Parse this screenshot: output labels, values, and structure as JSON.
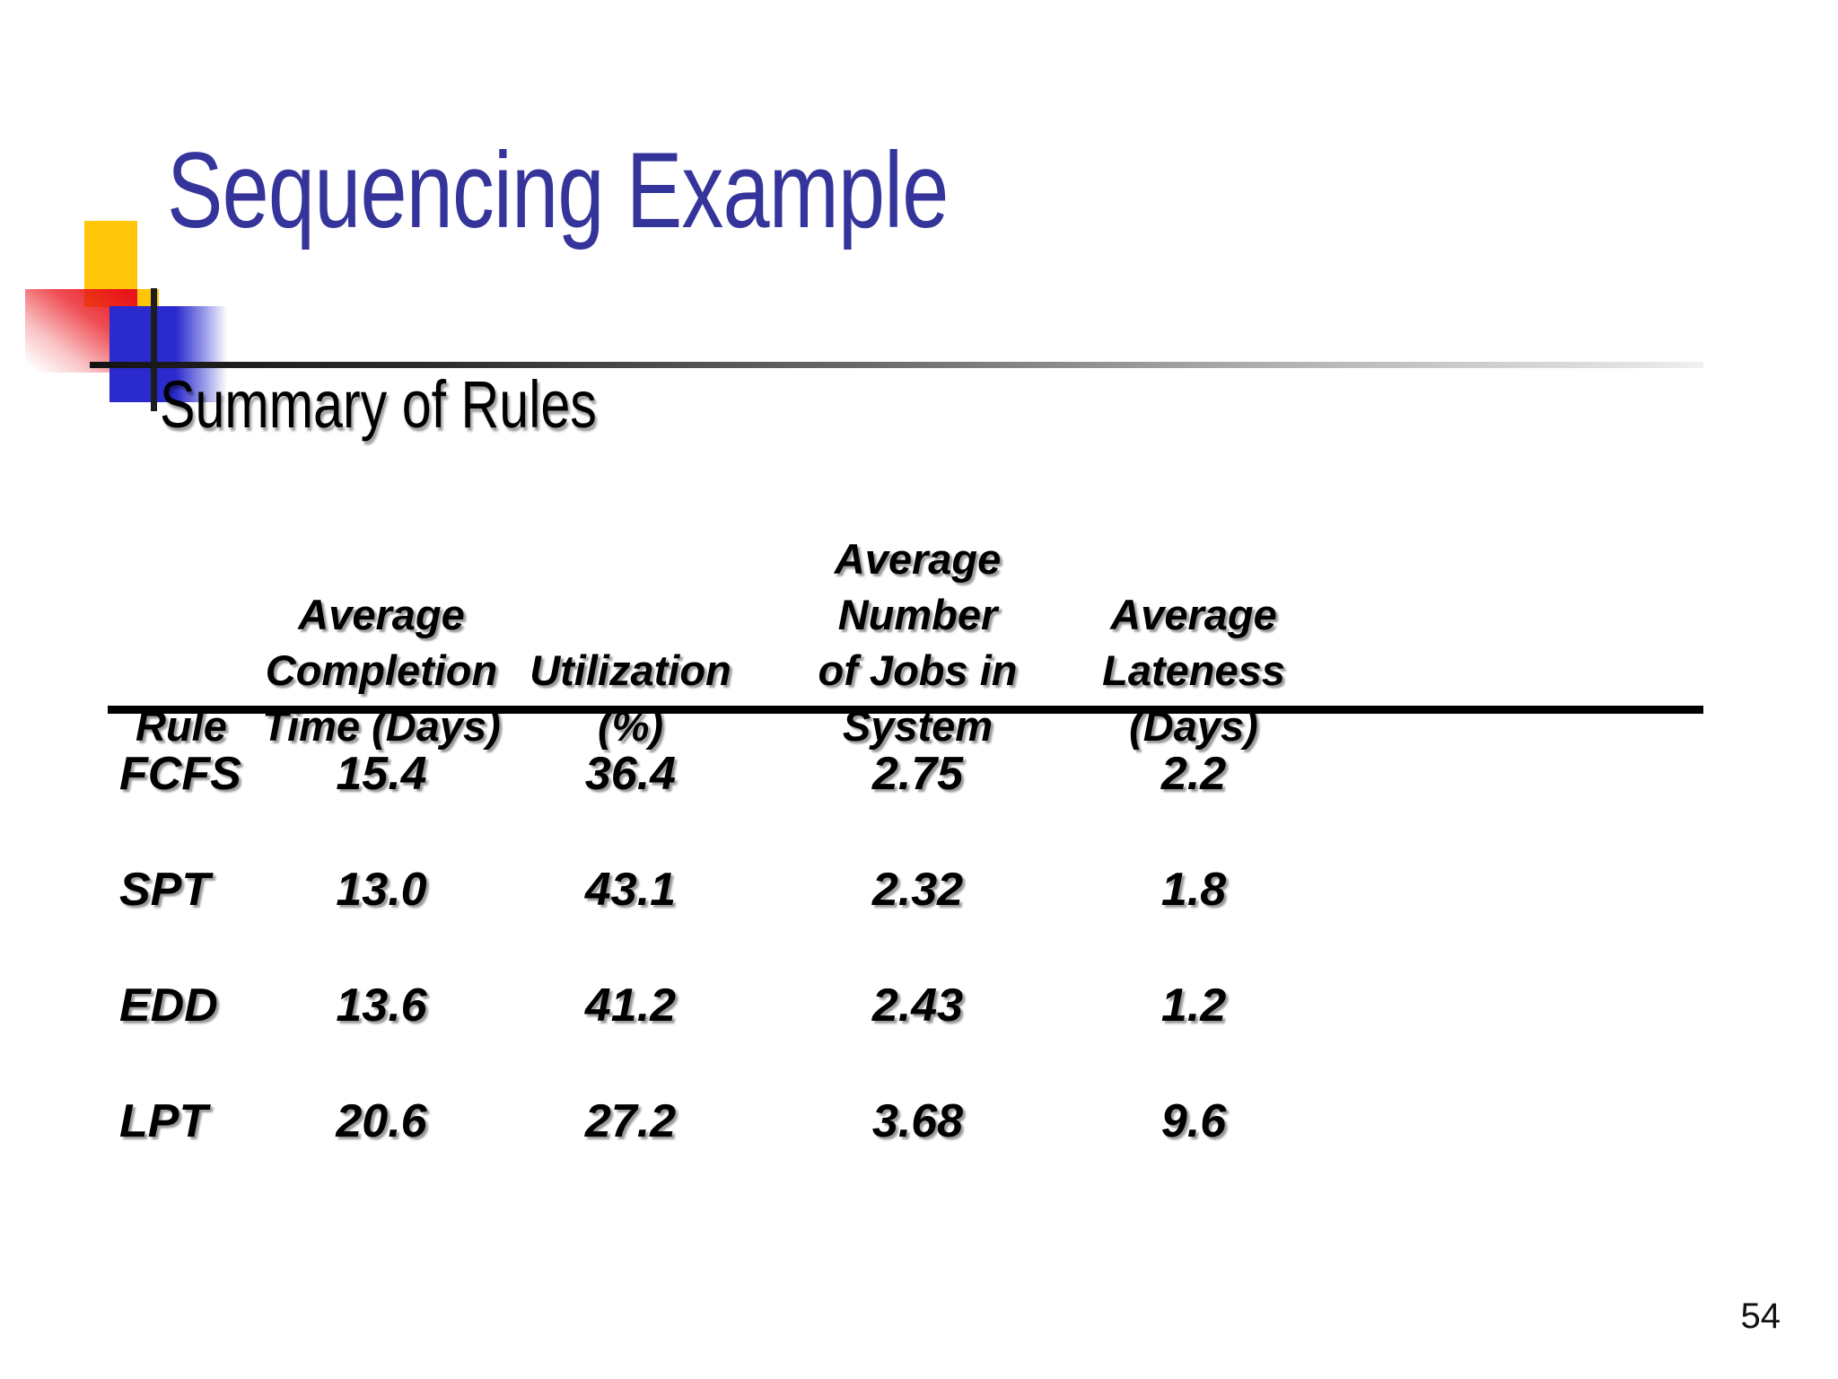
{
  "slide": {
    "title": "Sequencing Example",
    "subtitle": "Summary of Rules",
    "page_number": "54"
  },
  "colors": {
    "title_blue": "#35349B",
    "accent_yellow": "#FFC609",
    "accent_red": "#E9131B",
    "accent_blue": "#2A2ACE"
  },
  "table": {
    "columns": [
      {
        "id": "rule",
        "label_lines": [
          "Rule"
        ]
      },
      {
        "id": "avg_completion_time_days",
        "label_lines": [
          "Average",
          "Completion",
          "Time (Days)"
        ]
      },
      {
        "id": "utilization_pct",
        "label_lines": [
          "Utilization",
          "(%)"
        ]
      },
      {
        "id": "avg_jobs_in_system",
        "label_lines": [
          "Average Number",
          "of Jobs in",
          "System"
        ]
      },
      {
        "id": "avg_lateness_days",
        "label_lines": [
          "Average",
          "Lateness",
          "(Days)"
        ]
      }
    ],
    "rows": [
      {
        "rule": "FCFS",
        "avg_completion_time_days": "15.4",
        "utilization_pct": "36.4",
        "avg_jobs_in_system": "2.75",
        "avg_lateness_days": "2.2"
      },
      {
        "rule": "SPT",
        "avg_completion_time_days": "13.0",
        "utilization_pct": "43.1",
        "avg_jobs_in_system": "2.32",
        "avg_lateness_days": "1.8"
      },
      {
        "rule": "EDD",
        "avg_completion_time_days": "13.6",
        "utilization_pct": "41.2",
        "avg_jobs_in_system": "2.43",
        "avg_lateness_days": "1.2"
      },
      {
        "rule": "LPT",
        "avg_completion_time_days": "20.6",
        "utilization_pct": "27.2",
        "avg_jobs_in_system": "3.68",
        "avg_lateness_days": "9.6"
      }
    ]
  }
}
